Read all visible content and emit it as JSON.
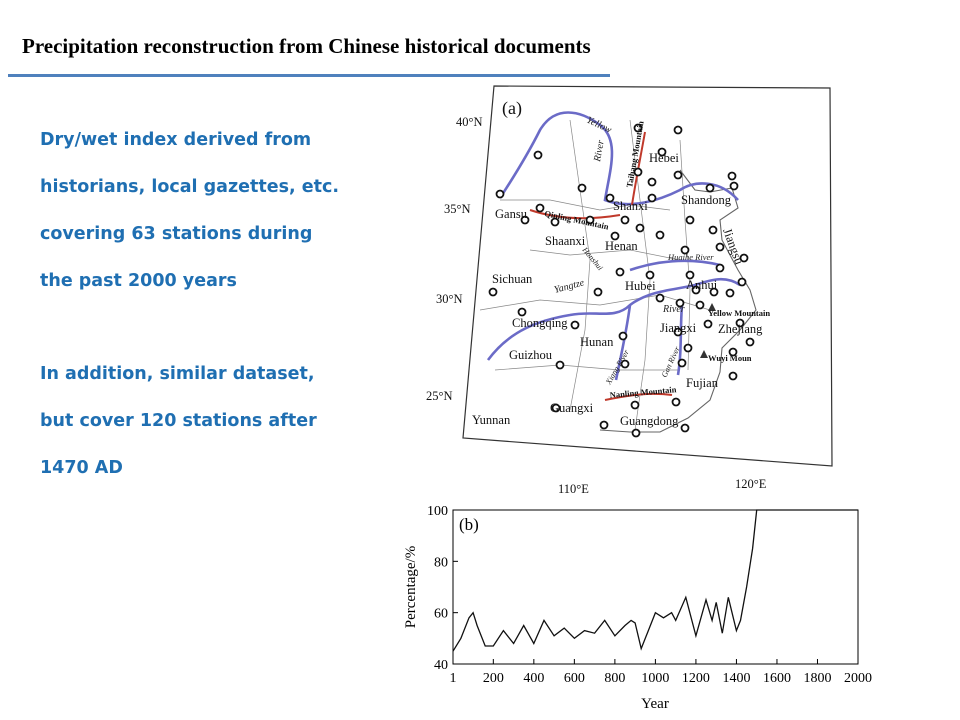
{
  "slide": {
    "title": "Precipitation reconstruction from Chinese historical documents",
    "lines_a": [
      "Dry/wet index derived from",
      "historians, local gazettes, etc.",
      "covering 63 stations during",
      "the past 2000 years"
    ],
    "lines_b": [
      "In addition, similar dataset,",
      "but cover 120 stations after",
      "1470 AD"
    ]
  },
  "map": {
    "panel_label": "(a)",
    "lat_labels": [
      "40°N",
      "35°N",
      "30°N",
      "25°N"
    ],
    "lon_labels": [
      "110°E",
      "120°E"
    ],
    "provinces": [
      "Hebei",
      "Shanxi",
      "Shandong",
      "Gansu",
      "Shaanxi",
      "Henan",
      "Jiangsu",
      "Sichuan",
      "Hubei",
      "Anhui",
      "Chongqing",
      "Jiangxi",
      "Zhejiang",
      "Hunan",
      "Guizhou",
      "Fujian",
      "Yunnan",
      "Guangxi",
      "Guangdong"
    ],
    "rivers": [
      "Yellow",
      "River",
      "Yangtze",
      "River",
      "Huaihe River",
      "Hanshui",
      "Xiang River",
      "Gan River"
    ],
    "mountains": [
      "Taihang Mountain",
      "Qinling Mountain",
      "Nanling Mountain",
      "Yellow Mountain",
      "Wuyi Moun"
    ]
  },
  "chart_data": {
    "type": "line",
    "panel_label": "(b)",
    "xlabel": "Year",
    "ylabel": "Percentage/%",
    "xlim": [
      1,
      2000
    ],
    "ylim": [
      40,
      100
    ],
    "xticks": [
      "1",
      "200",
      "400",
      "600",
      "800",
      "1000",
      "1200",
      "1400",
      "1600",
      "1800",
      "2000"
    ],
    "yticks": [
      "40",
      "60",
      "80",
      "100"
    ],
    "series": [
      {
        "x": [
          1,
          40,
          80,
          100,
          120,
          160,
          200,
          250,
          300,
          350,
          400,
          450,
          500,
          550,
          600,
          650,
          700,
          750,
          800,
          850,
          880,
          900,
          930,
          960,
          1000,
          1040,
          1080,
          1100,
          1150,
          1200,
          1250,
          1280,
          1300,
          1330,
          1360,
          1400,
          1420,
          1450,
          1470,
          1480,
          1500,
          1550,
          1600,
          1700,
          1800,
          1900,
          2000
        ],
        "y": [
          45,
          50,
          58,
          60,
          55,
          47,
          47,
          53,
          48,
          55,
          48,
          57,
          51,
          54,
          50,
          53,
          52,
          57,
          51,
          55,
          57,
          56,
          46,
          52,
          60,
          58,
          60,
          57,
          66,
          51,
          65,
          57,
          64,
          52,
          66,
          53,
          57,
          70,
          80,
          85,
          100,
          100,
          100,
          100,
          100,
          100,
          100
        ]
      }
    ]
  }
}
